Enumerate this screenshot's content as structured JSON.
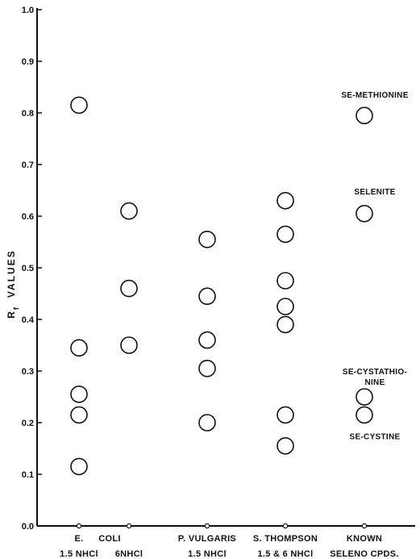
{
  "chart_data": {
    "type": "scatter",
    "ylabel_main": "R",
    "ylabel_sub": "f",
    "ylabel_rest": "VALUES",
    "ylim": [
      0,
      1.0
    ],
    "yticks": [
      0.0,
      0.1,
      0.2,
      0.3,
      0.4,
      0.5,
      0.6,
      0.7,
      0.8,
      0.9,
      1.0
    ],
    "ytick_labels": [
      "0.0",
      "0.1",
      "0.2",
      "0.3",
      "0.4",
      "0.5",
      "0.6",
      "0.7",
      "0.8",
      "0.9",
      "1.0"
    ],
    "grid": false,
    "columns": [
      {
        "line1": "E.",
        "line2": "1.5 NHCl",
        "values": [
          0.815,
          0.345,
          0.255,
          0.215,
          0.115
        ]
      },
      {
        "line1": "COLI",
        "line2": "6NHCl",
        "values": [
          0.61,
          0.46,
          0.35
        ]
      },
      {
        "line1": "P. VULGARIS",
        "line2": "1.5 NHCl",
        "values": [
          0.555,
          0.445,
          0.36,
          0.305,
          0.2
        ]
      },
      {
        "line1": "S. THOMPSON",
        "line2": "1.5 & 6 NHCl",
        "values": [
          0.63,
          0.565,
          0.475,
          0.425,
          0.39,
          0.215,
          0.155
        ]
      },
      {
        "line1": "KNOWN",
        "line2": "SELENO CPDS.",
        "values": [
          0.795,
          0.605,
          0.25,
          0.215
        ]
      }
    ],
    "annotations": [
      {
        "col": 4,
        "y": 0.795,
        "lines": [
          "SE-METHIONINE"
        ]
      },
      {
        "col": 4,
        "y": 0.605,
        "lines": [
          "SELENITE"
        ]
      },
      {
        "col": 4,
        "y": 0.25,
        "lines": [
          "SE-CYSTATHIO-",
          "NINE"
        ]
      },
      {
        "col": 4,
        "y": 0.215,
        "lines": [
          "SE-CYSTINE"
        ]
      }
    ]
  }
}
